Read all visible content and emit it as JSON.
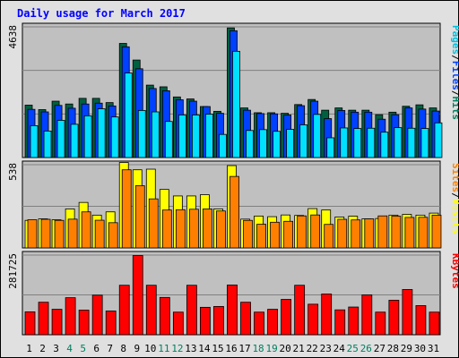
{
  "chart_data": {
    "type": "bar",
    "title": "Daily usage for March 2017",
    "categories": [
      "1",
      "2",
      "3",
      "4",
      "5",
      "6",
      "7",
      "8",
      "9",
      "10",
      "11",
      "12",
      "13",
      "14",
      "15",
      "16",
      "17",
      "18",
      "19",
      "20",
      "21",
      "22",
      "23",
      "24",
      "25",
      "26",
      "27",
      "28",
      "29",
      "30",
      "31"
    ],
    "weekend_days": [
      "4",
      "5",
      "11",
      "12",
      "18",
      "19",
      "25",
      "26"
    ],
    "panels": [
      {
        "id": "hits-files-pages",
        "ymax_label": "4638",
        "ymax": 4638,
        "legend": [
          {
            "text": "Pages",
            "color": "#00c0e0"
          },
          {
            "text": "/",
            "color": "#000000"
          },
          {
            "text": "Files",
            "color": "#0040ff"
          },
          {
            "text": "/",
            "color": "#000000"
          },
          {
            "text": "Hits",
            "color": "#008060"
          }
        ],
        "series": [
          {
            "name": "Hits",
            "color": "#006040",
            "values": [
              1860,
              1700,
              2000,
              1900,
              2100,
              2100,
              1950,
              4050,
              3460,
              2570,
              2510,
              2150,
              2080,
              1810,
              1640,
              4600,
              1760,
              1590,
              1590,
              1570,
              1880,
              2060,
              1680,
              1760,
              1680,
              1680,
              1520,
              1610,
              1820,
              1870,
              1760
            ]
          },
          {
            "name": "Files",
            "color": "#0040ff",
            "values": [
              1710,
              1620,
              1850,
              1750,
              1900,
              1930,
              1830,
              3930,
              3150,
              2450,
              2370,
              2050,
              2000,
              1810,
              1570,
              4500,
              1680,
              1560,
              1550,
              1510,
              1840,
              2000,
              1380,
              1670,
              1610,
              1610,
              1360,
              1520,
              1760,
              1720,
              1650
            ]
          },
          {
            "name": "Pages",
            "color": "#00e0ff",
            "values": [
              1130,
              940,
              1320,
              1180,
              1480,
              1730,
              1440,
              3000,
              1670,
              1620,
              1280,
              1510,
              1510,
              1540,
              820,
              3770,
              960,
              990,
              930,
              1000,
              1160,
              1530,
              700,
              1050,
              1030,
              1040,
              900,
              1060,
              1040,
              1030,
              1230
            ]
          }
        ]
      },
      {
        "id": "visits-sites",
        "ymax_label": "538",
        "ymax": 538,
        "legend": [
          {
            "text": "Sites",
            "color": "#ff8000"
          },
          {
            "text": "/",
            "color": "#000000"
          },
          {
            "text": "Visits",
            "color": "#ffff00"
          }
        ],
        "series": [
          {
            "name": "Visits",
            "color": "#ffff00",
            "values": [
              178,
              188,
              182,
              252,
              294,
              212,
              233,
              552,
              505,
              509,
              378,
              336,
              336,
              344,
              252,
              532,
              186,
              206,
              202,
              213,
              210,
              254,
              245,
              200,
              205,
              188,
              190,
              212,
              217,
              212,
              225
            ]
          },
          {
            "name": "Sites",
            "color": "#ff8000",
            "values": [
              182,
              185,
              178,
              186,
              233,
              179,
              163,
              505,
              402,
              317,
              245,
              247,
              250,
              252,
              239,
              462,
              178,
              153,
              166,
              172,
              207,
              213,
              152,
              185,
              181,
              188,
              207,
              205,
              197,
              198,
              212
            ]
          }
        ]
      },
      {
        "id": "kbytes",
        "ymax_label": "281725",
        "ymax": 281725,
        "legend": [
          {
            "text": "KBytes",
            "color": "#ff0000"
          }
        ],
        "series": [
          {
            "name": "KBytes",
            "color": "#ff0000",
            "values": [
              81000,
              115000,
              90000,
              131000,
              87000,
              140000,
              84000,
              175000,
              280000,
              175000,
              132000,
              80000,
              175000,
              97000,
              100000,
              176000,
              115000,
              80000,
              90000,
              125000,
              175000,
              108000,
              144000,
              88000,
              98000,
              141000,
              80000,
              122000,
              160000,
              103000,
              80000
            ]
          }
        ]
      }
    ]
  }
}
